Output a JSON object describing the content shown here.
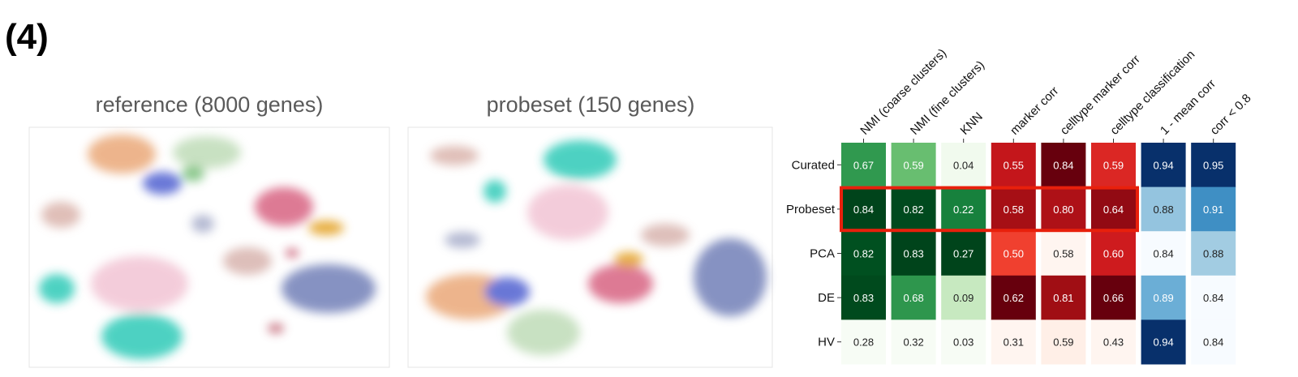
{
  "panel_label": "(4)",
  "umaps": [
    {
      "title": "reference (8000 genes)"
    },
    {
      "title": "probeset (150 genes)"
    }
  ],
  "chart_data": {
    "type": "heatmap",
    "columns": [
      "NMI (coarse clusters)",
      "NMI (fine clusters)",
      "KNN",
      "marker corr",
      "celltype marker corr",
      "celltype classification",
      "1 - mean corr",
      "corr < 0.8"
    ],
    "rows": [
      "Curated",
      "Probeset",
      "PCA",
      "DE",
      "HV"
    ],
    "values": [
      [
        0.67,
        0.59,
        0.04,
        0.55,
        0.84,
        0.59,
        0.94,
        0.95
      ],
      [
        0.84,
        0.82,
        0.22,
        0.58,
        0.8,
        0.64,
        0.88,
        0.91
      ],
      [
        0.82,
        0.83,
        0.27,
        0.5,
        0.58,
        0.6,
        0.84,
        0.88
      ],
      [
        0.83,
        0.68,
        0.09,
        0.62,
        0.81,
        0.66,
        0.89,
        0.84
      ],
      [
        0.28,
        0.32,
        0.03,
        0.31,
        0.59,
        0.43,
        0.94,
        0.84
      ]
    ],
    "value_labels": [
      [
        "0.67",
        "0.59",
        "0.04",
        "0.55",
        "0.84",
        "0.59",
        "0.94",
        "0.95"
      ],
      [
        "0.84",
        "0.82",
        "0.22",
        "0.58",
        "0.80",
        "0.64",
        "0.88",
        "0.91"
      ],
      [
        "0.82",
        "0.83",
        "0.27",
        "0.50",
        "0.58",
        "0.60",
        "0.84",
        "0.88"
      ],
      [
        "0.83",
        "0.68",
        "0.09",
        "0.62",
        "0.81",
        "0.66",
        "0.89",
        "0.84"
      ],
      [
        "0.28",
        "0.32",
        "0.03",
        "0.31",
        "0.59",
        "0.43",
        "0.94",
        "0.84"
      ]
    ],
    "column_colormaps": [
      "Greens",
      "Greens",
      "Greens",
      "Reds",
      "Reds",
      "Reds",
      "Blues",
      "Blues"
    ]
  }
}
